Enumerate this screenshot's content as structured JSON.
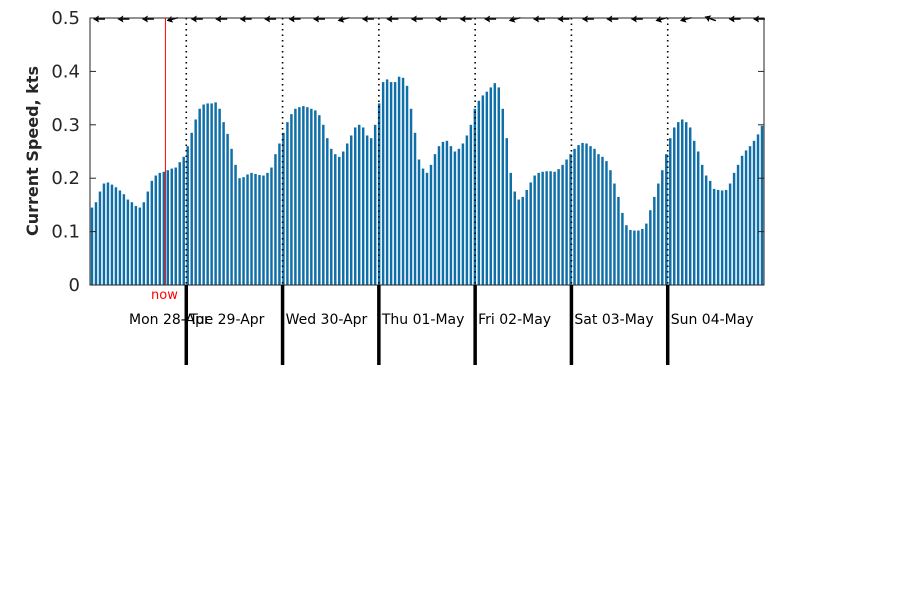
{
  "chart_data": {
    "type": "bar",
    "title": "",
    "xlabel": "",
    "ylabel": "Current Speed, kts",
    "ylim": [
      0,
      0.5
    ],
    "yticks": [
      0,
      0.1,
      0.2,
      0.3,
      0.4,
      0.5
    ],
    "ytick_labels": [
      "0",
      "0.1",
      "0.2",
      "0.3",
      "0.4",
      "0.5"
    ],
    "grid": false,
    "bar_color": "#0f6fa8",
    "x_start": "2025-04-28T00:00",
    "x_end": "2025-05-05T00:00",
    "hours_per_bar": 1,
    "day_boundaries_hours": [
      0,
      24,
      48,
      72,
      96,
      120,
      144,
      168
    ],
    "days": [
      "Mon 28-Apr",
      "Tue 29-Apr",
      "Wed 30-Apr",
      "Thu 01-May",
      "Fri 02-May",
      "Sat 03-May",
      "Sun 04-May"
    ],
    "now": {
      "label": "now",
      "hour_offset": 18.8,
      "color": "#ff0000"
    },
    "values": [
      0.145,
      0.155,
      0.175,
      0.19,
      0.192,
      0.188,
      0.183,
      0.177,
      0.17,
      0.16,
      0.155,
      0.148,
      0.145,
      0.155,
      0.175,
      0.195,
      0.205,
      0.21,
      0.212,
      0.215,
      0.218,
      0.22,
      0.23,
      0.24,
      0.26,
      0.285,
      0.31,
      0.33,
      0.338,
      0.34,
      0.34,
      0.342,
      0.33,
      0.305,
      0.283,
      0.255,
      0.225,
      0.2,
      0.202,
      0.207,
      0.21,
      0.208,
      0.206,
      0.205,
      0.21,
      0.22,
      0.245,
      0.265,
      0.285,
      0.305,
      0.32,
      0.33,
      0.333,
      0.335,
      0.333,
      0.33,
      0.327,
      0.318,
      0.3,
      0.275,
      0.255,
      0.245,
      0.24,
      0.25,
      0.265,
      0.28,
      0.295,
      0.3,
      0.295,
      0.28,
      0.275,
      0.3,
      0.34,
      0.38,
      0.385,
      0.38,
      0.38,
      0.39,
      0.388,
      0.373,
      0.33,
      0.285,
      0.235,
      0.218,
      0.21,
      0.225,
      0.245,
      0.26,
      0.268,
      0.27,
      0.26,
      0.25,
      0.255,
      0.265,
      0.28,
      0.3,
      0.33,
      0.345,
      0.355,
      0.362,
      0.37,
      0.378,
      0.37,
      0.33,
      0.275,
      0.21,
      0.175,
      0.16,
      0.165,
      0.178,
      0.192,
      0.205,
      0.21,
      0.212,
      0.213,
      0.213,
      0.212,
      0.217,
      0.225,
      0.235,
      0.245,
      0.255,
      0.262,
      0.266,
      0.265,
      0.26,
      0.255,
      0.245,
      0.24,
      0.232,
      0.215,
      0.19,
      0.165,
      0.135,
      0.112,
      0.103,
      0.102,
      0.102,
      0.105,
      0.115,
      0.14,
      0.165,
      0.19,
      0.215,
      0.245,
      0.275,
      0.295,
      0.305,
      0.31,
      0.305,
      0.295,
      0.27,
      0.25,
      0.225,
      0.205,
      0.195,
      0.18,
      0.178,
      0.177,
      0.178,
      0.19,
      0.21,
      0.225,
      0.242,
      0.252,
      0.26,
      0.27,
      0.282,
      0.298
    ]
  }
}
